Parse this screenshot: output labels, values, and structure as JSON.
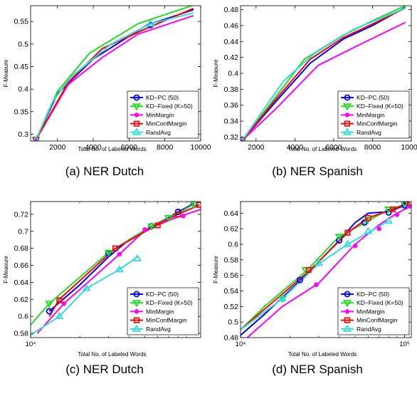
{
  "captions": [
    "(a) NER Dutch",
    "(b) NER Spanish",
    "(c) NER Dutch",
    "(d) NER Spanish"
  ],
  "series_styles": [
    {
      "color": "#0000ff",
      "marker": "circle"
    },
    {
      "color": "#22dd22",
      "marker": "triangle-down"
    },
    {
      "color": "#ff00ff",
      "marker": "dot"
    },
    {
      "color": "#ff0000",
      "marker": "square"
    },
    {
      "color": "#33dddd",
      "marker": "triangle-up"
    }
  ],
  "chart_data": [
    {
      "type": "line",
      "xlabel": "Total No. of Labeled Words",
      "ylabel": "F-Measure",
      "xscale": "linear",
      "xlim": [
        500,
        10000
      ],
      "ylim": [
        0.285,
        0.585
      ],
      "xticks": [
        2000,
        4000,
        6000,
        8000,
        10000
      ],
      "xticklabels": [
        "2000",
        "4000",
        "6000",
        "8000",
        "10000"
      ],
      "yticks": [
        0.3,
        0.35,
        0.4,
        0.45,
        0.5,
        0.55
      ],
      "yticklabels": [
        "0.3",
        "0.35",
        "0.4",
        "0.45",
        "0.5",
        "0.55"
      ],
      "grid": false,
      "legend_position": "bottom-right",
      "series": [
        {
          "name": "KD−PC (50)",
          "points": [
            [
              800,
              0.288
            ],
            [
              2000,
              0.39
            ],
            [
              4000,
              0.467
            ],
            [
              7000,
              0.542
            ],
            [
              9600,
              0.576
            ]
          ],
          "markers": [
            [
              800,
              0.288
            ],
            [
              7200,
              0.542
            ]
          ]
        },
        {
          "name": "KD−Fixed (K=50)",
          "points": [
            [
              800,
              0.288
            ],
            [
              2000,
              0.395
            ],
            [
              3800,
              0.48
            ],
            [
              6500,
              0.545
            ],
            [
              9500,
              0.585
            ]
          ],
          "markers": [
            [
              800,
              0.288
            ]
          ]
        },
        {
          "name": "MinMargin",
          "points": [
            [
              800,
              0.288
            ],
            [
              2600,
              0.41
            ],
            [
              4500,
              0.47
            ],
            [
              6500,
              0.522
            ],
            [
              9600,
              0.563
            ]
          ],
          "markers": [
            [
              800,
              0.288
            ]
          ]
        },
        {
          "name": "MinConfMargin",
          "points": [
            [
              800,
              0.288
            ],
            [
              2600,
              0.415
            ],
            [
              4500,
              0.49
            ],
            [
              7000,
              0.535
            ],
            [
              9600,
              0.579
            ]
          ],
          "markers": [
            [
              800,
              0.288
            ]
          ]
        },
        {
          "name": "RandAvg",
          "points": [
            [
              800,
              0.288
            ],
            [
              1700,
              0.37
            ],
            [
              2700,
              0.425
            ],
            [
              5000,
              0.5
            ],
            [
              7200,
              0.545
            ],
            [
              9600,
              0.569
            ]
          ],
          "markers": [
            [
              800,
              0.288
            ],
            [
              7200,
              0.545
            ]
          ]
        }
      ]
    },
    {
      "type": "line",
      "xlabel": "Total No. of Labeled Words",
      "ylabel": "F-Measure",
      "xscale": "linear",
      "xlim": [
        1200,
        10000
      ],
      "ylim": [
        0.315,
        0.485
      ],
      "xticks": [
        2000,
        4000,
        6000,
        8000,
        10000
      ],
      "xticklabels": [
        "2000",
        "4000",
        "6000",
        "8000",
        "10000"
      ],
      "yticks": [
        0.32,
        0.34,
        0.36,
        0.38,
        0.4,
        0.42,
        0.44,
        0.46,
        0.48
      ],
      "yticklabels": [
        "0.32",
        "0.34",
        "0.36",
        "0.38",
        "0.4",
        "0.42",
        "0.44",
        "0.46",
        "0.48"
      ],
      "grid": false,
      "legend_position": "bottom-right",
      "series": [
        {
          "name": "KD−PC (50)",
          "points": [
            [
              1300,
              0.316
            ],
            [
              3000,
              0.364
            ],
            [
              4800,
              0.413
            ],
            [
              6500,
              0.443
            ],
            [
              8000,
              0.46
            ],
            [
              9700,
              0.483
            ]
          ],
          "markers": [
            [
              1300,
              0.316
            ]
          ]
        },
        {
          "name": "KD−Fixed (K=50)",
          "points": [
            [
              1300,
              0.316
            ],
            [
              3000,
              0.37
            ],
            [
              4500,
              0.418
            ],
            [
              6500,
              0.448
            ],
            [
              8000,
              0.466
            ],
            [
              9700,
              0.485
            ]
          ],
          "markers": [
            [
              1300,
              0.316
            ]
          ]
        },
        {
          "name": "MinMargin",
          "points": [
            [
              1300,
              0.316
            ],
            [
              3000,
              0.355
            ],
            [
              5200,
              0.41
            ],
            [
              7500,
              0.438
            ],
            [
              9700,
              0.464
            ]
          ],
          "markers": [
            [
              1300,
              0.316
            ]
          ]
        },
        {
          "name": "MinConfMargin",
          "points": [
            [
              1300,
              0.316
            ],
            [
              3000,
              0.367
            ],
            [
              4800,
              0.418
            ],
            [
              6500,
              0.445
            ],
            [
              8000,
              0.462
            ],
            [
              9700,
              0.482
            ]
          ],
          "markers": [
            [
              1300,
              0.316
            ]
          ]
        },
        {
          "name": "RandAvg",
          "points": [
            [
              1300,
              0.316
            ],
            [
              3400,
              0.39
            ],
            [
              5000,
              0.425
            ],
            [
              7000,
              0.455
            ],
            [
              9700,
              0.482
            ]
          ],
          "markers": [
            [
              1300,
              0.316
            ]
          ]
        }
      ]
    },
    {
      "type": "line",
      "xlabel": "Total No. of Labeled Words",
      "ylabel": "F-Measure",
      "xscale": "log",
      "xlim": [
        10000,
        110000
      ],
      "ylim": [
        0.575,
        0.735
      ],
      "xticks": [
        10000
      ],
      "xticklabels": [
        "10⁴"
      ],
      "yticks": [
        0.58,
        0.6,
        0.62,
        0.64,
        0.66,
        0.68,
        0.7,
        0.72
      ],
      "yticklabels": [
        "0.58",
        "0.6",
        "0.62",
        "0.64",
        "0.66",
        "0.68",
        "0.7",
        "0.72"
      ],
      "grid": false,
      "legend_position": "bottom-right",
      "series": [
        {
          "name": "KD−PC (50)",
          "points": [
            [
              13000,
              0.606
            ],
            [
              20000,
              0.637
            ],
            [
              30000,
              0.67
            ],
            [
              40000,
              0.69
            ],
            [
              55000,
              0.706
            ],
            [
              70000,
              0.716
            ],
            [
              80000,
              0.723
            ],
            [
              90000,
              0.728
            ],
            [
              100000,
              0.733
            ]
          ],
          "markers": [
            [
              13000,
              0.606
            ],
            [
              30000,
              0.674
            ],
            [
              55000,
              0.706
            ],
            [
              80000,
              0.723
            ],
            [
              100000,
              0.733
            ]
          ]
        },
        {
          "name": "KD−Fixed (K=50)",
          "points": [
            [
              10000,
              0.59
            ],
            [
              13000,
              0.615
            ],
            [
              30000,
              0.675
            ],
            [
              55000,
              0.706
            ],
            [
              70000,
              0.715
            ],
            [
              100000,
              0.732
            ]
          ],
          "markers": [
            [
              13000,
              0.615
            ],
            [
              30000,
              0.675
            ],
            [
              55000,
              0.706
            ],
            [
              70000,
              0.716
            ],
            [
              100000,
              0.732
            ]
          ]
        },
        {
          "name": "MinMargin",
          "points": [
            [
              11000,
              0.58
            ],
            [
              16000,
              0.615
            ],
            [
              35000,
              0.673
            ],
            [
              50000,
              0.701
            ],
            [
              75000,
              0.715
            ],
            [
              115000,
              0.727
            ]
          ],
          "markers": [
            [
              16000,
              0.615
            ],
            [
              35000,
              0.673
            ],
            [
              50000,
              0.702
            ],
            [
              86000,
              0.718
            ],
            [
              113000,
              0.729
            ]
          ]
        },
        {
          "name": "MinConfMargin",
          "points": [
            [
              13000,
              0.6
            ],
            [
              15000,
              0.62
            ],
            [
              33000,
              0.68
            ],
            [
              60000,
              0.708
            ],
            [
              80000,
              0.72
            ],
            [
              108000,
              0.731
            ]
          ],
          "markers": [
            [
              15000,
              0.619
            ],
            [
              33000,
              0.68
            ],
            [
              60000,
              0.707
            ],
            [
              80000,
              0.72
            ],
            [
              108000,
              0.731
            ]
          ]
        },
        {
          "name": "RandAvg",
          "points": [
            [
              10000,
              0.578
            ],
            [
              15000,
              0.6
            ],
            [
              22000,
              0.633
            ],
            [
              35000,
              0.655
            ],
            [
              45000,
              0.67
            ]
          ],
          "markers": [
            [
              15000,
              0.6
            ],
            [
              22000,
              0.633
            ],
            [
              35000,
              0.655
            ],
            [
              45000,
              0.668
            ]
          ]
        }
      ]
    },
    {
      "type": "line",
      "xlabel": "Total No. of Labeled Words",
      "ylabel": "F-Measure",
      "xscale": "log",
      "xlim": [
        10000,
        110000
      ],
      "ylim": [
        0.48,
        0.655
      ],
      "xticks": [
        10000,
        100000
      ],
      "xticklabels": [
        "10⁴",
        "10⁵"
      ],
      "yticks": [
        0.48,
        0.5,
        0.52,
        0.54,
        0.56,
        0.58,
        0.6,
        0.62,
        0.64
      ],
      "yticklabels": [
        "0.48",
        "0.5",
        "0.52",
        "0.54",
        "0.56",
        "0.58",
        "0.6",
        "0.62",
        "0.64"
      ],
      "grid": false,
      "legend_position": "bottom-right",
      "series": [
        {
          "name": "KD−PC (50)",
          "points": [
            [
              10000,
              0.483
            ],
            [
              14000,
              0.51
            ],
            [
              23000,
              0.553
            ],
            [
              40000,
              0.605
            ],
            [
              50000,
              0.628
            ],
            [
              60000,
              0.64
            ],
            [
              80000,
              0.642
            ],
            [
              100000,
              0.65
            ]
          ],
          "markers": [
            [
              23000,
              0.554
            ],
            [
              40000,
              0.605
            ],
            [
              57000,
              0.628
            ],
            [
              80000,
              0.641
            ],
            [
              100000,
              0.65
            ]
          ]
        },
        {
          "name": "KD−Fixed (K=50)",
          "points": [
            [
              10000,
              0.49
            ],
            [
              14000,
              0.52
            ],
            [
              25000,
              0.565
            ],
            [
              40000,
              0.61
            ],
            [
              60000,
              0.63
            ],
            [
              80000,
              0.645
            ],
            [
              105000,
              0.652
            ]
          ],
          "markers": [
            [
              18000,
              0.53
            ],
            [
              25000,
              0.567
            ],
            [
              40000,
              0.61
            ],
            [
              60000,
              0.632
            ],
            [
              80000,
              0.645
            ],
            [
              100000,
              0.652
            ]
          ]
        },
        {
          "name": "MinMargin",
          "points": [
            [
              11000,
              0.48
            ],
            [
              18000,
              0.52
            ],
            [
              30000,
              0.55
            ],
            [
              50000,
              0.6
            ],
            [
              70000,
              0.625
            ],
            [
              90000,
              0.64
            ],
            [
              110000,
              0.649
            ]
          ],
          "markers": [
            [
              29000,
              0.548
            ],
            [
              50000,
              0.598
            ],
            [
              70000,
              0.62
            ],
            [
              90000,
              0.638
            ],
            [
              108000,
              0.649
            ]
          ]
        },
        {
          "name": "MinConfMargin",
          "points": [
            [
              10000,
              0.49
            ],
            [
              26000,
              0.565
            ],
            [
              45000,
              0.615
            ],
            [
              60000,
              0.634
            ],
            [
              85000,
              0.645
            ],
            [
              108000,
              0.654
            ]
          ],
          "markers": [
            [
              26000,
              0.567
            ],
            [
              45000,
              0.615
            ],
            [
              60000,
              0.634
            ],
            [
              85000,
              0.645
            ],
            [
              108000,
              0.654
            ]
          ]
        },
        {
          "name": "RandAvg",
          "points": [
            [
              10000,
              0.49
            ],
            [
              18000,
              0.53
            ],
            [
              30000,
              0.575
            ],
            [
              45000,
              0.6
            ],
            [
              60000,
              0.615
            ],
            [
              80000,
              0.63
            ]
          ],
          "markers": [
            [
              18000,
              0.53
            ],
            [
              30000,
              0.576
            ],
            [
              45000,
              0.6
            ],
            [
              60000,
              0.617
            ],
            [
              80000,
              0.63
            ]
          ]
        }
      ]
    }
  ]
}
